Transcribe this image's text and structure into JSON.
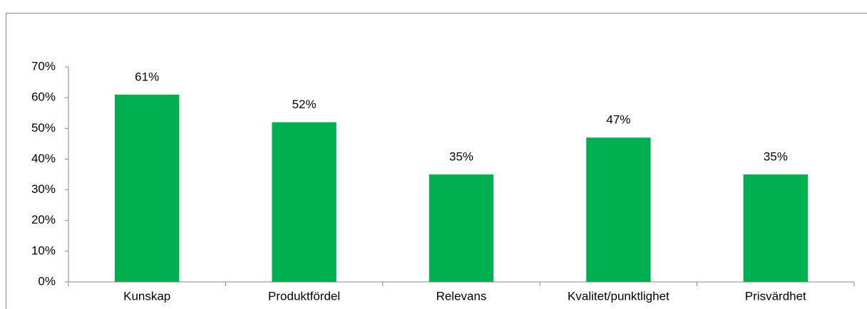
{
  "chart_data": {
    "type": "bar",
    "categories": [
      "Kunskap",
      "Produktfördel",
      "Relevans",
      "Kvalitet/punktlighet",
      "Prisvärdhet"
    ],
    "values": [
      61,
      52,
      35,
      47,
      35
    ],
    "value_labels": [
      "61%",
      "52%",
      "35%",
      "47%",
      "35%"
    ],
    "color": "#00b050",
    "ylim": [
      0,
      70
    ],
    "yticks": [
      {
        "value": 0,
        "label": "0%"
      },
      {
        "value": 10,
        "label": "10%"
      },
      {
        "value": 20,
        "label": "20%"
      },
      {
        "value": 30,
        "label": "30%"
      },
      {
        "value": 40,
        "label": "40%"
      },
      {
        "value": 50,
        "label": "50%"
      },
      {
        "value": 60,
        "label": "60%"
      },
      {
        "value": 70,
        "label": "70%"
      }
    ],
    "grid": false
  }
}
